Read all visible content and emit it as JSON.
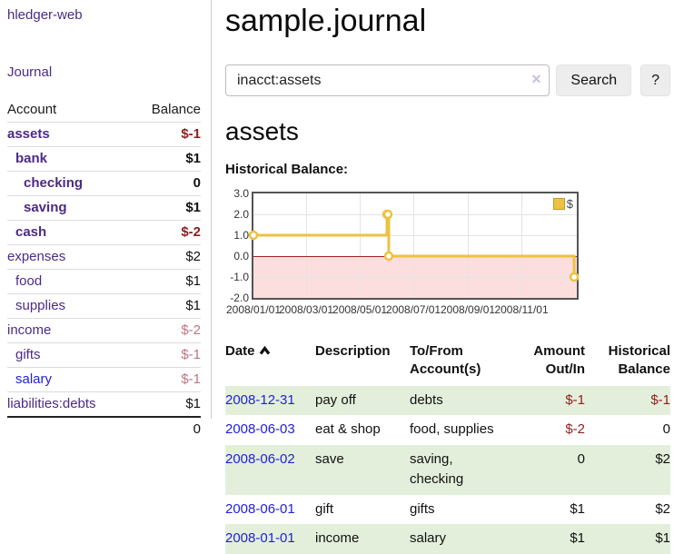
{
  "app": {
    "title": "hledger-web",
    "nav_journal": "Journal"
  },
  "sidebar": {
    "col_account": "Account",
    "col_balance": "Balance",
    "accounts": [
      {
        "name": "assets",
        "depth": 1,
        "bold": true,
        "link": "purple",
        "balance": "$-1",
        "balance_class": "neg"
      },
      {
        "name": "bank",
        "depth": 2,
        "bold": true,
        "link": "purple",
        "balance": "$1",
        "balance_class": ""
      },
      {
        "name": "checking",
        "depth": 3,
        "bold": true,
        "link": "purple",
        "balance": "0",
        "balance_class": ""
      },
      {
        "name": "saving",
        "depth": 3,
        "bold": true,
        "link": "purple",
        "balance": "$1",
        "balance_class": ""
      },
      {
        "name": "cash",
        "depth": 2,
        "bold": true,
        "link": "purple",
        "balance": "$-2",
        "balance_class": "neg"
      },
      {
        "name": "expenses",
        "depth": 1,
        "bold": false,
        "link": "purple",
        "balance": "$2",
        "balance_class": ""
      },
      {
        "name": "food",
        "depth": 2,
        "bold": false,
        "link": "purple",
        "balance": "$1",
        "balance_class": ""
      },
      {
        "name": "supplies",
        "depth": 2,
        "bold": false,
        "link": "purple",
        "balance": "$1",
        "balance_class": ""
      },
      {
        "name": "income",
        "depth": 1,
        "bold": false,
        "link": "purple",
        "balance": "$-2",
        "balance_class": "rose"
      },
      {
        "name": "gifts",
        "depth": 2,
        "bold": false,
        "link": "purple",
        "balance": "$-1",
        "balance_class": "rose"
      },
      {
        "name": "salary",
        "depth": 2,
        "bold": false,
        "link": "blue",
        "balance": "$-1",
        "balance_class": "rose"
      },
      {
        "name": "liabilities:debts",
        "depth": 1,
        "bold": false,
        "link": "purple",
        "balance": "$1",
        "balance_class": ""
      }
    ],
    "total": "0"
  },
  "header": {
    "title": "sample.journal"
  },
  "search": {
    "value": "inacct:assets",
    "clear_glyph": "✕",
    "button": "Search",
    "help": "?"
  },
  "account_page": {
    "title": "assets",
    "chart_label": "Historical Balance:"
  },
  "chart_data": {
    "type": "line",
    "title": "Historical Balance:",
    "step": true,
    "series": [
      {
        "name": "$",
        "color": "#edc240",
        "points": [
          [
            "2008-01-01",
            1
          ],
          [
            "2008-06-01",
            2
          ],
          [
            "2008-06-02",
            2
          ],
          [
            "2008-06-03",
            0
          ],
          [
            "2008-12-31",
            -1
          ]
        ]
      }
    ],
    "x_ticks": [
      "2008/01/01",
      "2008/03/01",
      "2008/05/01",
      "2008/07/01",
      "2008/09/01",
      "2008/11/01"
    ],
    "y_ticks": [
      3.0,
      2.0,
      1.0,
      0.0,
      -1.0,
      -2.0
    ],
    "ylim": [
      -2,
      3
    ],
    "xlim_days": [
      0,
      368
    ],
    "grid": true,
    "legend": "$",
    "legend_position": "top-right",
    "negative_region_color": "#fcdede",
    "zero_line_color": "#a12121"
  },
  "register": {
    "headers": {
      "date": "Date",
      "description": "Description",
      "accounts": "To/From Account(s)",
      "amount": "Amount Out/In",
      "balance": "Historical Balance"
    },
    "rows": [
      {
        "date": "2008-12-31",
        "description": "pay off",
        "accounts": "debts",
        "amount": "$-1",
        "amount_neg": true,
        "balance": "$-1",
        "balance_neg": true
      },
      {
        "date": "2008-06-03",
        "description": "eat & shop",
        "accounts": "food, supplies",
        "amount": "$-2",
        "amount_neg": true,
        "balance": "0",
        "balance_neg": false
      },
      {
        "date": "2008-06-02",
        "description": "save",
        "accounts": "saving, checking",
        "amount": "0",
        "amount_neg": false,
        "balance": "$2",
        "balance_neg": false
      },
      {
        "date": "2008-06-01",
        "description": "gift",
        "accounts": "gifts",
        "amount": "$1",
        "amount_neg": false,
        "balance": "$2",
        "balance_neg": false
      },
      {
        "date": "2008-01-01",
        "description": "income",
        "accounts": "salary",
        "amount": "$1",
        "amount_neg": false,
        "balance": "$1",
        "balance_neg": false
      }
    ]
  },
  "colors": {
    "link_purple": "#4b2b87",
    "link_blue": "#2222d6",
    "negative_dark": "#8f1e1e",
    "negative_rose": "#bf7482",
    "row_stripe_green": "#e3efdb",
    "chart_gold": "#edc240",
    "chart_pink": "#fcdede",
    "chart_zero_line": "#a12121"
  }
}
